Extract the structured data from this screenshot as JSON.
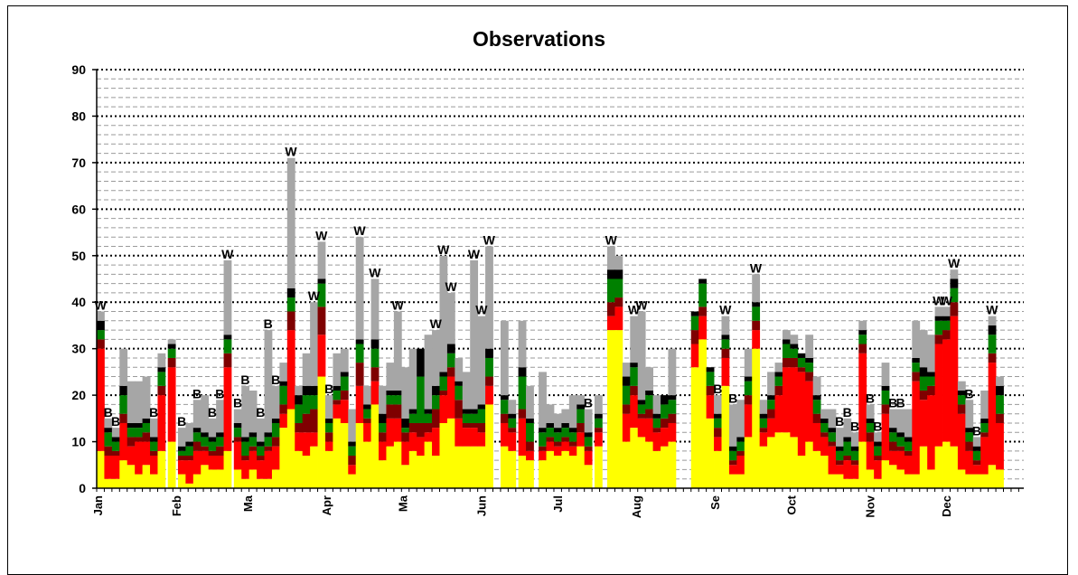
{
  "chart_data": {
    "type": "bar",
    "stacked": true,
    "title": "Observations",
    "xlabel": "",
    "ylabel": "",
    "ylim": [
      0,
      90
    ],
    "yticks": [
      0,
      10,
      20,
      30,
      40,
      50,
      60,
      70,
      80,
      90
    ],
    "month_labels": [
      "Jan",
      "Feb",
      "Ma",
      "Apr",
      "Ma",
      "Jun",
      "Jul",
      "Aug",
      "Se",
      "Oct",
      "Nov",
      "Dec"
    ],
    "month_start_days": [
      0,
      31,
      59,
      90,
      120,
      151,
      181,
      212,
      243,
      273,
      304,
      334
    ],
    "days_in_year": 365,
    "grid": {
      "major": "dotted",
      "minor": "dashed"
    },
    "colors": {
      "yellow": "#ffff00",
      "red": "#ff0000",
      "darkred": "#7f0000",
      "green": "#008000",
      "black": "#000000",
      "gray": "#a6a6a6"
    },
    "series_order": [
      "yellow",
      "red",
      "darkred",
      "green",
      "black",
      "gray"
    ],
    "columns": [
      {
        "day": 0,
        "v": [
          8,
          22,
          2,
          2,
          2,
          2
        ],
        "mark": "W"
      },
      {
        "day": 3,
        "v": [
          2,
          5,
          2,
          3,
          1,
          2
        ],
        "mark": "B"
      },
      {
        "day": 6,
        "v": [
          2,
          5,
          1,
          2,
          1,
          2
        ],
        "mark": "B"
      },
      {
        "day": 9,
        "v": [
          6,
          8,
          2,
          4,
          2,
          8
        ]
      },
      {
        "day": 12,
        "v": [
          5,
          4,
          2,
          2,
          1,
          9
        ]
      },
      {
        "day": 15,
        "v": [
          3,
          7,
          1,
          2,
          1,
          9
        ]
      },
      {
        "day": 18,
        "v": [
          5,
          5,
          2,
          2,
          1,
          9
        ]
      },
      {
        "day": 21,
        "v": [
          3,
          4,
          1,
          2,
          1,
          4
        ],
        "mark": "B"
      },
      {
        "day": 24,
        "v": [
          8,
          12,
          2,
          3,
          1,
          3
        ]
      },
      {
        "day": 28,
        "v": [
          10,
          16,
          2,
          2,
          1,
          1
        ]
      },
      {
        "day": 32,
        "v": [
          3,
          3,
          1,
          1,
          1,
          4
        ],
        "mark": "B"
      },
      {
        "day": 35,
        "v": [
          1,
          5,
          1,
          2,
          1,
          4
        ]
      },
      {
        "day": 38,
        "v": [
          3,
          5,
          2,
          2,
          1,
          6
        ],
        "mark": "B"
      },
      {
        "day": 41,
        "v": [
          5,
          3,
          1,
          2,
          1,
          8
        ]
      },
      {
        "day": 44,
        "v": [
          4,
          3,
          1,
          2,
          1,
          4
        ],
        "mark": "B"
      },
      {
        "day": 47,
        "v": [
          4,
          3,
          2,
          2,
          1,
          7
        ],
        "mark": "B"
      },
      {
        "day": 50,
        "v": [
          8,
          18,
          3,
          3,
          1,
          16
        ],
        "mark": "W"
      },
      {
        "day": 54,
        "v": [
          4,
          6,
          1,
          2,
          1,
          3
        ],
        "mark": "B"
      },
      {
        "day": 57,
        "v": [
          2,
          4,
          1,
          3,
          1,
          11
        ],
        "mark": "B"
      },
      {
        "day": 60,
        "v": [
          4,
          4,
          1,
          2,
          1,
          9
        ]
      },
      {
        "day": 63,
        "v": [
          2,
          4,
          1,
          2,
          1,
          5
        ],
        "mark": "B"
      },
      {
        "day": 66,
        "v": [
          2,
          6,
          1,
          2,
          1,
          22
        ],
        "mark": "B"
      },
      {
        "day": 69,
        "v": [
          4,
          5,
          2,
          3,
          1,
          7
        ],
        "mark": "B"
      },
      {
        "day": 72,
        "v": [
          13,
          3,
          2,
          4,
          1,
          4
        ]
      },
      {
        "day": 75,
        "v": [
          17,
          17,
          4,
          3,
          2,
          28
        ],
        "mark": "W"
      },
      {
        "day": 78,
        "v": [
          8,
          4,
          2,
          4,
          2,
          2
        ]
      },
      {
        "day": 81,
        "v": [
          7,
          5,
          4,
          4,
          2,
          7
        ]
      },
      {
        "day": 84,
        "v": [
          9,
          3,
          5,
          3,
          2,
          18
        ],
        "mark": "W"
      },
      {
        "day": 87,
        "v": [
          24,
          9,
          6,
          5,
          1,
          8
        ],
        "mark": "W"
      },
      {
        "day": 90,
        "v": [
          8,
          2,
          2,
          2,
          1,
          5
        ],
        "mark": "B"
      },
      {
        "day": 93,
        "v": [
          15,
          3,
          1,
          2,
          1,
          7
        ]
      },
      {
        "day": 96,
        "v": [
          14,
          5,
          2,
          3,
          1,
          5
        ]
      },
      {
        "day": 99,
        "v": [
          3,
          2,
          2,
          2,
          1,
          7
        ]
      },
      {
        "day": 102,
        "v": [
          14,
          8,
          5,
          4,
          1,
          22
        ],
        "mark": "W"
      },
      {
        "day": 105,
        "v": [
          10,
          4,
          1,
          2,
          1,
          4
        ]
      },
      {
        "day": 108,
        "v": [
          18,
          5,
          3,
          4,
          2,
          13
        ],
        "mark": "W"
      },
      {
        "day": 111,
        "v": [
          6,
          4,
          2,
          2,
          2,
          6
        ]
      },
      {
        "day": 114,
        "v": [
          9,
          6,
          3,
          2,
          1,
          6
        ]
      },
      {
        "day": 117,
        "v": [
          10,
          5,
          3,
          2,
          1,
          17
        ],
        "mark": "W"
      },
      {
        "day": 120,
        "v": [
          5,
          5,
          2,
          1,
          2,
          11
        ]
      },
      {
        "day": 123,
        "v": [
          8,
          4,
          2,
          2,
          1,
          13
        ]
      },
      {
        "day": 126,
        "v": [
          7,
          4,
          3,
          10,
          6,
          0
        ]
      },
      {
        "day": 129,
        "v": [
          10,
          2,
          2,
          2,
          1,
          16
        ]
      },
      {
        "day": 132,
        "v": [
          7,
          6,
          4,
          3,
          2,
          12
        ],
        "mark": "W"
      },
      {
        "day": 135,
        "v": [
          14,
          6,
          1,
          3,
          1,
          25
        ],
        "mark": "W"
      },
      {
        "day": 138,
        "v": [
          15,
          9,
          2,
          3,
          2,
          11
        ],
        "mark": "W"
      },
      {
        "day": 141,
        "v": [
          9,
          6,
          4,
          3,
          1,
          5
        ]
      },
      {
        "day": 144,
        "v": [
          9,
          4,
          1,
          2,
          1,
          8
        ]
      },
      {
        "day": 147,
        "v": [
          9,
          4,
          1,
          2,
          1,
          32
        ],
        "mark": "W"
      },
      {
        "day": 150,
        "v": [
          9,
          3,
          2,
          3,
          1,
          19
        ],
        "mark": "W"
      },
      {
        "day": 153,
        "v": [
          18,
          4,
          2,
          4,
          2,
          22
        ],
        "mark": "W"
      },
      {
        "day": 159,
        "v": [
          9,
          5,
          2,
          3,
          1,
          16
        ]
      },
      {
        "day": 162,
        "v": [
          8,
          4,
          1,
          2,
          1,
          3
        ]
      },
      {
        "day": 166,
        "v": [
          7,
          8,
          2,
          7,
          2,
          10
        ]
      },
      {
        "day": 169,
        "v": [
          6,
          2,
          2,
          4,
          1,
          7
        ]
      },
      {
        "day": 174,
        "v": [
          6,
          2,
          1,
          3,
          1,
          12
        ]
      },
      {
        "day": 177,
        "v": [
          8,
          2,
          1,
          2,
          1,
          4
        ]
      },
      {
        "day": 180,
        "v": [
          7,
          2,
          1,
          2,
          1,
          3
        ]
      },
      {
        "day": 183,
        "v": [
          8,
          2,
          1,
          2,
          1,
          3
        ]
      },
      {
        "day": 186,
        "v": [
          7,
          2,
          1,
          2,
          1,
          7
        ]
      },
      {
        "day": 189,
        "v": [
          9,
          3,
          2,
          3,
          1,
          2
        ]
      },
      {
        "day": 192,
        "v": [
          5,
          3,
          1,
          2,
          1,
          5
        ],
        "mark": "B"
      },
      {
        "day": 196,
        "v": [
          9,
          3,
          1,
          2,
          1,
          4
        ]
      },
      {
        "day": 201,
        "v": [
          34,
          3,
          3,
          5,
          2,
          5
        ],
        "mark": "W"
      },
      {
        "day": 204,
        "v": [
          34,
          5,
          2,
          4,
          2,
          3
        ]
      },
      {
        "day": 207,
        "v": [
          10,
          6,
          2,
          4,
          2,
          3
        ]
      },
      {
        "day": 210,
        "v": [
          13,
          7,
          2,
          4,
          1,
          10
        ],
        "mark": "W"
      },
      {
        "day": 213,
        "v": [
          11,
          4,
          1,
          2,
          1,
          19
        ],
        "mark": "W"
      },
      {
        "day": 216,
        "v": [
          10,
          5,
          2,
          3,
          1,
          5
        ]
      },
      {
        "day": 219,
        "v": [
          8,
          4,
          1,
          2,
          1,
          4
        ]
      },
      {
        "day": 222,
        "v": [
          9,
          4,
          2,
          3,
          2,
          0
        ]
      },
      {
        "day": 225,
        "v": [
          10,
          4,
          2,
          3,
          1,
          10
        ]
      },
      {
        "day": 234,
        "v": [
          26,
          5,
          3,
          3,
          1,
          0
        ]
      },
      {
        "day": 237,
        "v": [
          32,
          5,
          2,
          5,
          1,
          0
        ]
      },
      {
        "day": 240,
        "v": [
          15,
          5,
          2,
          3,
          1,
          0
        ]
      },
      {
        "day": 243,
        "v": [
          8,
          3,
          2,
          2,
          1,
          4
        ],
        "mark": "B"
      },
      {
        "day": 246,
        "v": [
          22,
          6,
          2,
          2,
          1,
          4
        ],
        "mark": "W"
      },
      {
        "day": 249,
        "v": [
          3,
          2,
          1,
          2,
          1,
          9
        ],
        "mark": "B"
      },
      {
        "day": 252,
        "v": [
          3,
          4,
          1,
          2,
          1,
          8
        ]
      },
      {
        "day": 255,
        "v": [
          11,
          7,
          2,
          3,
          1,
          6
        ]
      },
      {
        "day": 258,
        "v": [
          30,
          4,
          2,
          3,
          1,
          6
        ],
        "mark": "W"
      },
      {
        "day": 261,
        "v": [
          9,
          3,
          1,
          2,
          1,
          3
        ]
      },
      {
        "day": 264,
        "v": [
          11,
          4,
          2,
          2,
          1,
          5
        ]
      },
      {
        "day": 267,
        "v": [
          12,
          8,
          2,
          2,
          1,
          2
        ]
      },
      {
        "day": 270,
        "v": [
          12,
          14,
          2,
          3,
          1,
          2
        ]
      },
      {
        "day": 273,
        "v": [
          11,
          15,
          2,
          2,
          1,
          2
        ]
      },
      {
        "day": 276,
        "v": [
          7,
          18,
          1,
          2,
          1,
          0
        ]
      },
      {
        "day": 279,
        "v": [
          10,
          13,
          2,
          2,
          1,
          5
        ]
      },
      {
        "day": 282,
        "v": [
          8,
          6,
          2,
          3,
          1,
          4
        ]
      },
      {
        "day": 285,
        "v": [
          7,
          4,
          1,
          2,
          1,
          2
        ]
      },
      {
        "day": 288,
        "v": [
          3,
          6,
          1,
          2,
          1,
          4
        ]
      },
      {
        "day": 291,
        "v": [
          3,
          2,
          1,
          2,
          1,
          4
        ],
        "mark": "B"
      },
      {
        "day": 294,
        "v": [
          2,
          4,
          1,
          3,
          1,
          4
        ],
        "mark": "B"
      },
      {
        "day": 297,
        "v": [
          2,
          3,
          1,
          2,
          1,
          3
        ],
        "mark": "B"
      },
      {
        "day": 300,
        "v": [
          10,
          19,
          2,
          2,
          1,
          2
        ]
      },
      {
        "day": 303,
        "v": [
          4,
          6,
          2,
          2,
          1,
          3
        ],
        "mark": "B"
      },
      {
        "day": 306,
        "v": [
          2,
          4,
          1,
          2,
          1,
          2
        ],
        "mark": "B"
      },
      {
        "day": 309,
        "v": [
          6,
          10,
          2,
          3,
          1,
          5
        ]
      },
      {
        "day": 312,
        "v": [
          5,
          3,
          2,
          2,
          1,
          4
        ],
        "mark": "B"
      },
      {
        "day": 315,
        "v": [
          4,
          4,
          1,
          2,
          1,
          5
        ],
        "mark": "B"
      },
      {
        "day": 318,
        "v": [
          3,
          4,
          1,
          2,
          1,
          6
        ]
      },
      {
        "day": 321,
        "v": [
          3,
          20,
          2,
          2,
          1,
          8
        ]
      },
      {
        "day": 324,
        "v": [
          9,
          10,
          2,
          3,
          2,
          8
        ]
      },
      {
        "day": 327,
        "v": [
          4,
          16,
          2,
          2,
          1,
          8
        ]
      },
      {
        "day": 330,
        "v": [
          9,
          22,
          2,
          3,
          1,
          2
        ],
        "mark": "W"
      },
      {
        "day": 333,
        "v": [
          10,
          22,
          2,
          2,
          1,
          2
        ],
        "mark": "W"
      },
      {
        "day": 336,
        "v": [
          9,
          28,
          3,
          3,
          2,
          2
        ],
        "mark": "W"
      },
      {
        "day": 339,
        "v": [
          4,
          12,
          2,
          2,
          1,
          2
        ]
      },
      {
        "day": 342,
        "v": [
          3,
          5,
          2,
          2,
          1,
          6
        ],
        "mark": "B"
      },
      {
        "day": 345,
        "v": [
          3,
          2,
          1,
          2,
          1,
          2
        ],
        "mark": "B"
      },
      {
        "day": 348,
        "v": [
          3,
          8,
          1,
          2,
          1,
          6
        ]
      },
      {
        "day": 351,
        "v": [
          5,
          22,
          2,
          4,
          2,
          2
        ],
        "mark": "W"
      },
      {
        "day": 354,
        "v": [
          4,
          10,
          2,
          4,
          2,
          2
        ]
      }
    ]
  }
}
